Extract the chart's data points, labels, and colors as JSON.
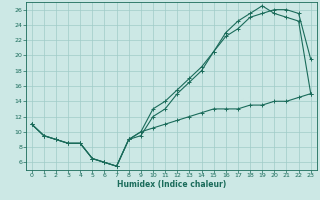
{
  "xlabel": "Humidex (Indice chaleur)",
  "background_color": "#cce8e5",
  "grid_color": "#a0ccc8",
  "line_color": "#1a6b5a",
  "xlim": [
    -0.5,
    23.5
  ],
  "ylim": [
    5.0,
    27.0
  ],
  "xticks": [
    0,
    1,
    2,
    3,
    4,
    5,
    6,
    7,
    8,
    9,
    10,
    11,
    12,
    13,
    14,
    15,
    16,
    17,
    18,
    19,
    20,
    21,
    22,
    23
  ],
  "yticks": [
    6,
    8,
    10,
    12,
    14,
    16,
    18,
    20,
    22,
    24,
    26
  ],
  "line1_x": [
    0,
    1,
    2,
    3,
    4,
    5,
    6,
    7,
    8,
    9,
    10,
    11,
    12,
    13,
    14,
    15,
    16,
    17,
    18,
    19,
    20,
    21,
    22,
    23
  ],
  "line1_y": [
    11,
    9.5,
    9,
    8.5,
    8.5,
    6.5,
    6,
    5.5,
    9,
    9.5,
    12,
    13,
    15,
    16.5,
    18,
    20.5,
    22.5,
    23.5,
    25,
    25.5,
    26,
    26,
    25.5,
    19.5
  ],
  "line2_x": [
    0,
    1,
    2,
    3,
    4,
    5,
    6,
    7,
    8,
    9,
    10,
    11,
    12,
    13,
    14,
    15,
    16,
    17,
    18,
    19,
    20,
    21,
    22,
    23
  ],
  "line2_y": [
    11,
    9.5,
    9,
    8.5,
    8.5,
    6.5,
    6,
    5.5,
    9,
    10,
    13,
    14,
    15.5,
    17,
    18.5,
    20.5,
    23,
    24.5,
    25.5,
    26.5,
    25.5,
    25,
    24.5,
    15
  ],
  "line3_x": [
    0,
    1,
    2,
    3,
    4,
    5,
    6,
    7,
    8,
    9,
    10,
    11,
    12,
    13,
    14,
    15,
    16,
    17,
    18,
    19,
    20,
    21,
    22,
    23
  ],
  "line3_y": [
    11,
    9.5,
    9,
    8.5,
    8.5,
    6.5,
    6,
    5.5,
    9,
    10,
    10.5,
    11,
    11.5,
    12,
    12.5,
    13,
    13,
    13,
    13.5,
    13.5,
    14,
    14,
    14.5,
    15
  ]
}
